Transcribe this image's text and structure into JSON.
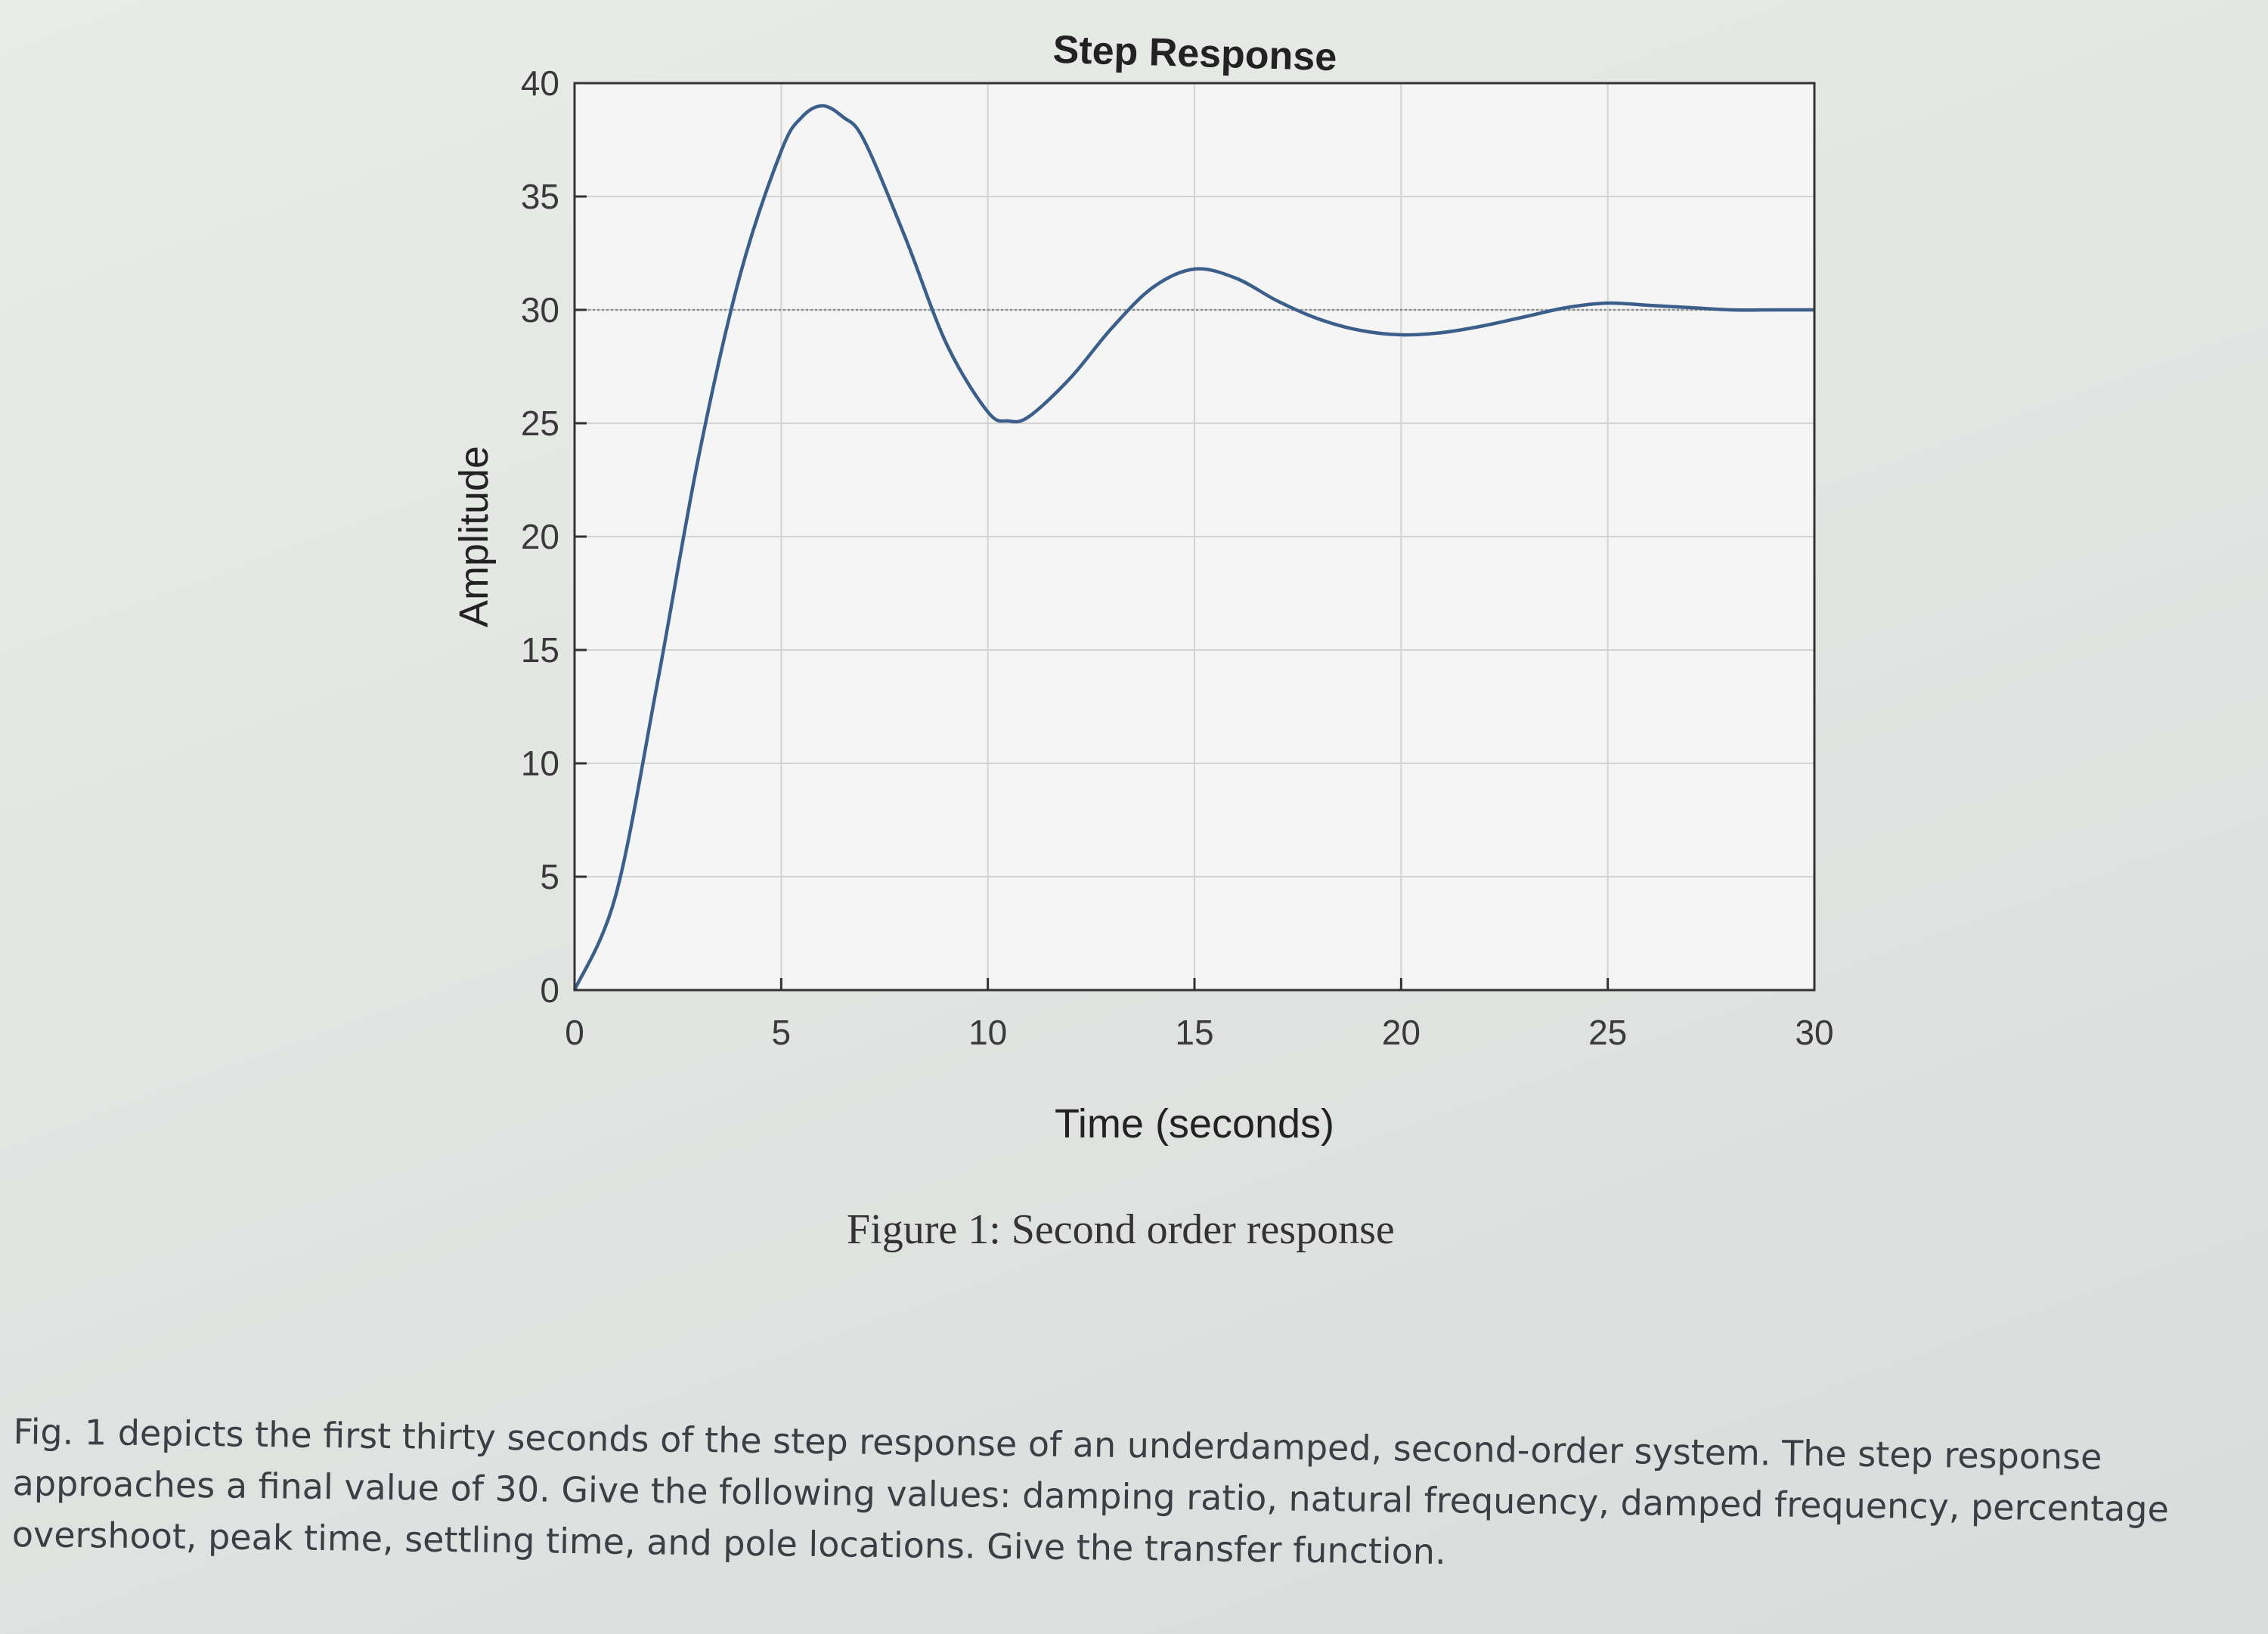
{
  "chart_data": {
    "type": "line",
    "title": "Step Response",
    "xlabel": "Time (seconds)",
    "ylabel": "Amplitude",
    "xlim": [
      0,
      30
    ],
    "ylim": [
      0,
      40
    ],
    "xticks": [
      0,
      5,
      10,
      15,
      20,
      25,
      30
    ],
    "yticks": [
      0,
      5,
      10,
      15,
      20,
      25,
      30,
      35,
      40
    ],
    "grid": true,
    "legend": "none",
    "final_value": 30,
    "line_color": "#3b5f8a",
    "series": [
      {
        "x": [
          0,
          1,
          2,
          3,
          4,
          5,
          5.5,
          6,
          6.5,
          7,
          8,
          9,
          10,
          10.5,
          11,
          12,
          13,
          14,
          15,
          16,
          17,
          18,
          19,
          20,
          21,
          22,
          23,
          24,
          25,
          26,
          27,
          28,
          29,
          30
        ],
        "values": [
          0,
          4.2,
          13.5,
          23.5,
          31.5,
          37.0,
          38.5,
          39.0,
          38.5,
          37.5,
          33.2,
          28.5,
          25.5,
          25.1,
          25.3,
          27.0,
          29.2,
          31.0,
          31.8,
          31.4,
          30.4,
          29.6,
          29.1,
          28.9,
          29.0,
          29.3,
          29.7,
          30.1,
          30.3,
          30.2,
          30.1,
          30.0,
          30.0,
          30.0
        ]
      }
    ]
  },
  "caption": "Figure 1: Second order response",
  "problem_text": "Fig. 1 depicts the first thirty seconds of the step response of an underdamped, second-order system. The step response approaches a final value of 30. Give the following values: damping ratio, natural frequency, damped frequency, percentage overshoot, peak time, settling time, and pole locations. Give the transfer function."
}
